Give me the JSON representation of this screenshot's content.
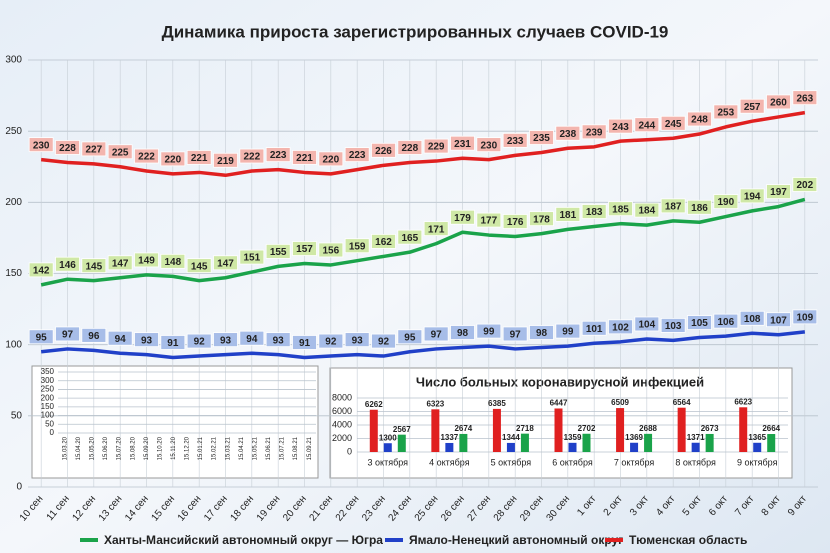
{
  "chart_data": [
    {
      "type": "line",
      "title": "Динамика прироста зарегистрированных случаев COVID-19",
      "categories": [
        "10 сен",
        "11 сен",
        "12 сен",
        "13 сен",
        "14 сен",
        "15 сен",
        "16 сен",
        "17 сен",
        "18 сен",
        "19 сен",
        "20 сен",
        "21 сен",
        "22 сен",
        "23 сен",
        "24 сен",
        "25 сен",
        "26 сен",
        "27 сен",
        "28 сен",
        "29 сен",
        "30 сен",
        "1 окт",
        "2 окт",
        "3 окт",
        "4 окт",
        "5 окт",
        "6 окт",
        "7 окт",
        "8 окт",
        "9 окт"
      ],
      "series": [
        {
          "name": "Ханты-Мансийский автономный округ — Югра",
          "color": "#1aa34a",
          "label_fill": "#cfe8a6",
          "values": [
            142,
            146,
            145,
            147,
            149,
            148,
            145,
            147,
            151,
            155,
            157,
            156,
            159,
            162,
            165,
            171,
            179,
            177,
            176,
            178,
            181,
            183,
            185,
            184,
            187,
            186,
            190,
            194,
            197,
            202
          ]
        },
        {
          "name": "Ямало-Ненецкий автономный округ",
          "color": "#2040c8",
          "label_fill": "#a7bde8",
          "values": [
            95,
            97,
            96,
            94,
            93,
            91,
            92,
            93,
            94,
            93,
            91,
            92,
            93,
            92,
            95,
            97,
            98,
            99,
            97,
            98,
            99,
            101,
            102,
            104,
            103,
            105,
            106,
            108,
            107,
            109
          ]
        },
        {
          "name": "Тюменская область",
          "color": "#e02020",
          "label_fill": "#f3b5ae",
          "values": [
            230,
            228,
            227,
            225,
            222,
            220,
            221,
            219,
            222,
            223,
            221,
            220,
            223,
            226,
            228,
            229,
            231,
            230,
            233,
            235,
            238,
            239,
            243,
            244,
            245,
            248,
            253,
            257,
            260,
            263
          ]
        }
      ],
      "ylim": [
        0,
        300
      ],
      "yticks": [
        0,
        50,
        100,
        150,
        200,
        250,
        300
      ],
      "grid": true,
      "legend": "bottom"
    },
    {
      "type": "line",
      "categories": [
        "15.03.20",
        "15.04.20",
        "15.05.20",
        "15.06.20",
        "15.07.20",
        "15.08.20",
        "15.09.20",
        "15.10.20",
        "15.11.20",
        "15.12.20",
        "15.01.21",
        "15.02.21",
        "15.03.21",
        "15.04.21",
        "15.05.21",
        "15.06.21",
        "15.07.21",
        "15.08.21",
        "15.09.21"
      ],
      "ylim": [
        0,
        350
      ],
      "yticks": [
        0,
        50,
        100,
        150,
        200,
        250,
        300,
        350
      ],
      "grid": true
    },
    {
      "type": "bar",
      "title": "Число больных коронавирусной инфекцией",
      "categories": [
        "3 октября",
        "4 октября",
        "5 октября",
        "6 октября",
        "7 октября",
        "8 октября",
        "9 октября"
      ],
      "series": [
        {
          "color": "#e02020",
          "values": [
            6262,
            6323,
            6385,
            6447,
            6509,
            6564,
            6623
          ]
        },
        {
          "color": "#2040c8",
          "values": [
            1300,
            1337,
            1344,
            1359,
            1369,
            1371,
            1365
          ]
        },
        {
          "color": "#1aa34a",
          "values": [
            2567,
            2674,
            2718,
            2702,
            2688,
            2673,
            2664
          ]
        }
      ],
      "ylim": [
        0,
        8000
      ],
      "yticks": [
        0,
        2000,
        4000,
        6000,
        8000
      ],
      "grid": true
    }
  ]
}
